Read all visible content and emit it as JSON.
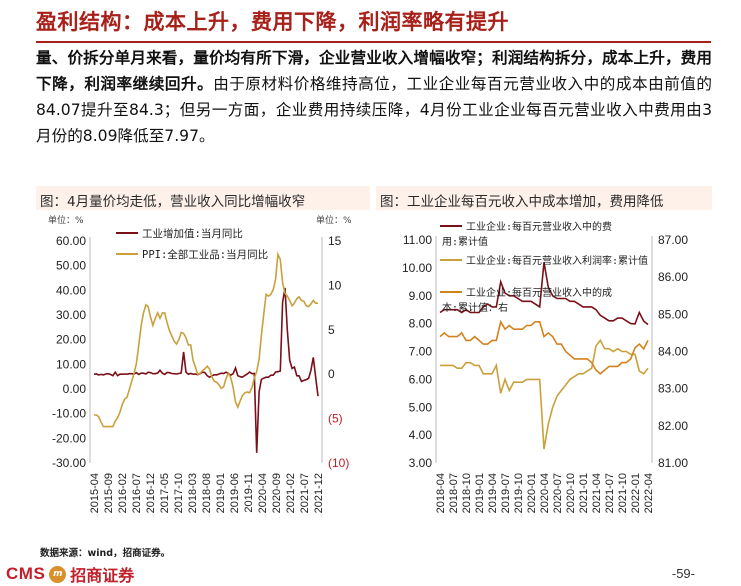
{
  "heading": "盈利结构：成本上升，费用下降，利润率略有提升",
  "paragraph": {
    "bold": "量、价拆分单月来看，量价均有所下滑，企业营业收入增幅收窄；利润结构拆分，成本上升，费用下降，利润率继续回升。",
    "normal": "由于原材料价格维持高位，工业企业每百元营业收入中的成本由前值的84.07提升至84.3；但另一方面，企业费用持续压降，4月份工业企业每百元营业收入中费用由3月份的8.09降低至7.97。"
  },
  "colors": {
    "brand": "#a8201a",
    "panel_bg": "#fdf1ea",
    "series_dark": "#7a1018",
    "series_gold": "#c9a03c",
    "series_orange": "#d4821e"
  },
  "chart_data": [
    {
      "type": "line",
      "title": "图：4月量价均走低，营业收入同比增幅收窄",
      "left_unit": "单位：%",
      "right_unit": "单位：%",
      "left_ticks": [
        "60.00",
        "50.00",
        "40.00",
        "30.00",
        "20.00",
        "10.00",
        "0.00",
        "-10.00",
        "-20.00",
        "-30.00"
      ],
      "right_ticks": [
        "15",
        "10",
        "5",
        "0",
        "(5)",
        "(10)"
      ],
      "ylim_left": [
        -30,
        60
      ],
      "ylim_right": [
        -10,
        15
      ],
      "x_ticks": [
        "2015-04",
        "2015-09",
        "2016-02",
        "2016-07",
        "2016-12",
        "2017-05",
        "2017-10",
        "2018-03",
        "2018-08",
        "2019-01",
        "2019-06",
        "2019-11",
        "2020-04",
        "2020-09",
        "2021-02",
        "2021-07",
        "2021-12"
      ],
      "series": [
        {
          "name": "工业增加值:当月同比",
          "axis": "left",
          "color": "#7a1018",
          "values": [
            6,
            6.1,
            5.7,
            5.9,
            5.7,
            6.1,
            6.2,
            5.9,
            5.4,
            6.8,
            5.4,
            6,
            6,
            6.1,
            6,
            6.2,
            6.2,
            6.1,
            6.6,
            5.9,
            6.4,
            6.4,
            6.1,
            6.8,
            6.6,
            6.2,
            6.2,
            6.5,
            7.6,
            6.4,
            5.9,
            6.7,
            6.6,
            6.3,
            6.2,
            6.1,
            6.3,
            6.5,
            15,
            6.8,
            6,
            6.3,
            6,
            6.1,
            5.8,
            6.2,
            6.8,
            6.7,
            5.4,
            4.8,
            5.3,
            5.8,
            5.7,
            6.1,
            6.4,
            6.3,
            6.8,
            6.3,
            5.6,
            6.2,
            8.5,
            5.4,
            5,
            4.8,
            5.5,
            6.1,
            6.9,
            6.2,
            6.3,
            -25.9,
            -1.1,
            3.9,
            4.4,
            4.8,
            4.8,
            5.6,
            5.6,
            6.9,
            7,
            7.3,
            35.1,
            41,
            24,
            11.6,
            8.3,
            8.9,
            5.4,
            5.3,
            3.1,
            3.5,
            3.8,
            4.3,
            7.5,
            12.8,
            5,
            -2.9
          ]
        },
        {
          "name": "PPI:全部工业品:当月同比",
          "axis": "right",
          "color": "#c9a03c",
          "values": [
            -4.6,
            -4.6,
            -4.8,
            -5.4,
            -5.9,
            -5.9,
            -5.9,
            -5.9,
            -5.9,
            -5.3,
            -4.9,
            -4.3,
            -3.4,
            -2.8,
            -2.6,
            -1.7,
            -0.8,
            0.1,
            1.2,
            3.3,
            5.5,
            6.9,
            7.8,
            7.6,
            6.4,
            5.5,
            6.3,
            6.9,
            6.3,
            6.9,
            6.9,
            5.8,
            4.9,
            4.3,
            3.7,
            3.4,
            3.9,
            4.7,
            4.6,
            4.1,
            3.3,
            3.3,
            1.6,
            0.8,
            0,
            0.1,
            0.4,
            0.6,
            0.9,
            0.6,
            -0.3,
            -0.8,
            -0.9,
            -1.2,
            -1.6,
            -1.4,
            -0.5,
            0.1,
            -0.4,
            -1.5,
            -3.1,
            -3.7,
            -3,
            -2.4,
            -2.1,
            -2,
            -2.1,
            -1.5,
            -0.4,
            0.3,
            1.7,
            4.4,
            6.8,
            9,
            8.8,
            9,
            9.5,
            10.7,
            13.5,
            12.9,
            10.3,
            9.1,
            8.8,
            8.3,
            7.7,
            8,
            8.5,
            8.7,
            8.3,
            8.2,
            7.7,
            7.6,
            7.9,
            8.3,
            8.0,
            8.0
          ]
        }
      ]
    },
    {
      "type": "line",
      "title": "图：工业企业每百元收入中成本增加，费用降低",
      "left_ticks": [
        "11.00",
        "10.00",
        "9.00",
        "8.00",
        "7.00",
        "6.00",
        "5.00",
        "4.00",
        "3.00"
      ],
      "right_ticks": [
        "87.00",
        "86.00",
        "85.00",
        "84.00",
        "83.00",
        "82.00",
        "81.00"
      ],
      "ylim_left": [
        3,
        11
      ],
      "ylim_right": [
        81,
        87
      ],
      "x_ticks": [
        "2018-04",
        "2018-07",
        "2018-10",
        "2019-01",
        "2019-04",
        "2019-07",
        "2019-10",
        "2020-01",
        "2020-04",
        "2020-07",
        "2020-10",
        "2021-01",
        "2021-04",
        "2021-07",
        "2021-10",
        "2022-01",
        "2022-04"
      ],
      "series": [
        {
          "name": "工业企业:每百元营业收入中的费用:累计值",
          "axis": "left",
          "color": "#7a1018",
          "values": [
            8.4,
            8.5,
            8.5,
            8.5,
            8.5,
            8.4,
            8.5,
            8.4,
            8.4,
            8.4,
            8.6,
            8.7,
            8.6,
            8.6,
            9.5,
            9.1,
            9,
            9,
            8.9,
            8.8,
            8.8,
            8.8,
            8.7,
            8.6,
            10.2,
            9.3,
            9,
            8.9,
            8.9,
            8.9,
            8.8,
            8.8,
            8.7,
            8.6,
            8.6,
            8.6,
            8.5,
            8.3,
            8.2,
            8.1,
            8.1,
            8.2,
            8.2,
            8.1,
            8.0,
            7.99,
            8.4,
            8.09,
            7.97
          ]
        },
        {
          "name": "工业企业:每百元营业收入利润率:累计值",
          "axis": "left",
          "color": "#c9a03c",
          "values": [
            6.5,
            6.5,
            6.5,
            6.5,
            6.4,
            6.4,
            6.6,
            6.6,
            6.5,
            6.5,
            6.2,
            6.2,
            6.2,
            6.5,
            5.5,
            6.0,
            5.6,
            5.9,
            5.9,
            5.9,
            6.0,
            6.0,
            6.0,
            6.0,
            3.5,
            4.4,
            5.0,
            5.4,
            5.6,
            5.8,
            6.0,
            6.1,
            6.2,
            6.2,
            6.3,
            6.4,
            7.2,
            7.4,
            7.1,
            7.1,
            7.0,
            7.1,
            7.0,
            7.0,
            6.9,
            6.9,
            6.3,
            6.2,
            6.4
          ]
        },
        {
          "name": "工业企业:每百元营业收入中的成本:累计值：右",
          "axis": "right",
          "color": "#d4821e",
          "values": [
            84.4,
            84.5,
            84.4,
            84.4,
            84.4,
            84.5,
            84.3,
            84.3,
            84.4,
            84.3,
            84.2,
            84.2,
            84.3,
            84.3,
            84.8,
            84.6,
            84.7,
            84.6,
            84.6,
            84.6,
            84.7,
            84.7,
            84.8,
            84.8,
            84.4,
            84.5,
            84.4,
            84.2,
            84.2,
            84.0,
            83.9,
            83.8,
            83.8,
            83.8,
            83.8,
            83.7,
            83.5,
            83.4,
            83.5,
            83.6,
            83.6,
            83.6,
            83.7,
            83.7,
            83.8,
            84.1,
            84.2,
            84.07,
            84.3
          ]
        }
      ]
    }
  ],
  "footer": {
    "source": "数据来源：wind，招商证券。",
    "logo_en": "CMS",
    "logo_badge": "m",
    "logo_cn": "招商证券",
    "page": "-59-"
  }
}
